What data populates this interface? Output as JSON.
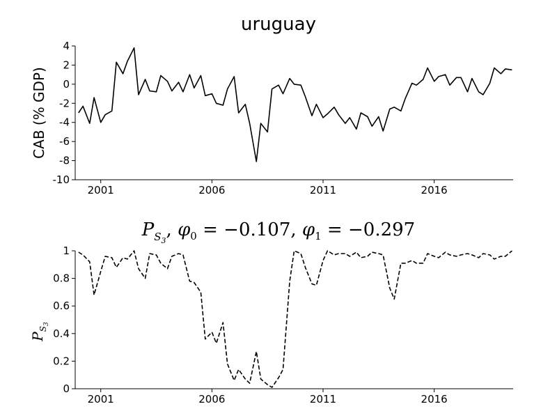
{
  "chart_data": [
    {
      "type": "line",
      "title": "uruguay",
      "xlabel": "",
      "ylabel": "CAB (% GDP)",
      "xlim": [
        1999.85,
        2019.55
      ],
      "ylim": [
        -10,
        4
      ],
      "yticks": [
        4,
        2,
        0,
        -2,
        -4,
        -6,
        -8,
        -10
      ],
      "ytick_labels": [
        "4",
        "2",
        "0",
        "-2",
        "-4",
        "-6",
        "-8",
        "-10"
      ],
      "xticks": [
        2001,
        2006,
        2011,
        2016
      ],
      "xtick_labels": [
        "2001",
        "2006",
        "2011",
        "2016"
      ],
      "line_color": "#000000",
      "line_style": "solid",
      "grid": false,
      "series": [
        {
          "x": [
            2000.0,
            2000.2,
            2000.5,
            2000.7,
            2001.0,
            2001.2,
            2001.5,
            2001.7,
            2002.0,
            2002.2,
            2002.5,
            2002.7,
            2003.0,
            2003.2,
            2003.5,
            2003.7,
            2004.0,
            2004.2,
            2004.5,
            2004.7,
            2005.0,
            2005.2,
            2005.5,
            2005.7,
            2006.0,
            2006.2,
            2006.5,
            2006.7,
            2007.0,
            2007.2,
            2007.5,
            2007.7,
            2008.0,
            2008.2,
            2008.5,
            2008.7,
            2009.0,
            2009.2,
            2009.5,
            2009.7,
            2010.0,
            2010.2,
            2010.5,
            2010.7,
            2011.0,
            2011.2,
            2011.5,
            2011.7,
            2012.0,
            2012.2,
            2012.5,
            2012.7,
            2013.0,
            2013.2,
            2013.5,
            2013.7,
            2014.0,
            2014.2,
            2014.5,
            2014.7,
            2015.0,
            2015.2,
            2015.5,
            2015.7,
            2016.0,
            2016.2,
            2016.5,
            2016.7,
            2017.0,
            2017.2,
            2017.5,
            2017.7,
            2018.0,
            2018.2,
            2018.5,
            2018.7,
            2019.0,
            2019.2,
            2019.5
          ],
          "values": [
            -3.0,
            -2.3,
            -4.1,
            -1.4,
            -4.0,
            -3.2,
            -2.8,
            2.3,
            1.1,
            2.4,
            3.8,
            -1.1,
            0.5,
            -0.7,
            -0.8,
            0.9,
            0.3,
            -0.7,
            0.2,
            -0.8,
            1.0,
            -0.4,
            0.9,
            -1.2,
            -1.0,
            -2.0,
            -2.2,
            -0.5,
            0.8,
            -3.0,
            -2.1,
            -4.1,
            -8.1,
            -4.1,
            -5.0,
            -0.5,
            -0.1,
            -1.0,
            0.6,
            0.0,
            -0.1,
            -1.3,
            -3.3,
            -2.1,
            -3.5,
            -3.1,
            -2.4,
            -3.2,
            -4.1,
            -3.5,
            -4.7,
            -3.0,
            -3.4,
            -4.4,
            -3.4,
            -4.9,
            -2.6,
            -2.4,
            -2.8,
            -1.5,
            0.1,
            -0.1,
            0.5,
            1.7,
            0.3,
            0.8,
            1.0,
            -0.1,
            0.7,
            0.7,
            -0.8,
            0.6,
            -0.8,
            -1.1,
            0.1,
            1.7,
            1.1,
            1.6,
            1.5
          ]
        }
      ]
    },
    {
      "type": "line",
      "title": "P_{S_3}, φ_0 = −0.107, φ_1 = −0.297",
      "title_parts": {
        "p": "P",
        "s": "S",
        "s3": "3",
        "sep1": ", ",
        "phi0": "φ",
        "phi0_sub": "0",
        "eq0": " = −0.107, ",
        "phi1": "φ",
        "phi1_sub": "1",
        "eq1": " = −0.297"
      },
      "xlabel": "",
      "ylabel": "P_{S_3}",
      "ylabel_parts": {
        "p": "P",
        "s": "S",
        "s3": "3"
      },
      "xlim": [
        1999.85,
        2019.55
      ],
      "ylim": [
        0,
        1
      ],
      "yticks": [
        0,
        0.2,
        0.4,
        0.6,
        0.8,
        1
      ],
      "ytick_labels": [
        "0",
        "0.2",
        "0.4",
        "0.6",
        "0.8",
        "1"
      ],
      "xticks": [
        2001,
        2006,
        2011,
        2016
      ],
      "xtick_labels": [
        "2001",
        "2006",
        "2011",
        "2016"
      ],
      "line_color": "#000000",
      "line_style": "dashed",
      "grid": false,
      "series": [
        {
          "x": [
            2000.0,
            2000.2,
            2000.5,
            2000.7,
            2001.0,
            2001.2,
            2001.5,
            2001.7,
            2002.0,
            2002.2,
            2002.5,
            2002.7,
            2003.0,
            2003.2,
            2003.5,
            2003.7,
            2004.0,
            2004.2,
            2004.5,
            2004.7,
            2005.0,
            2005.2,
            2005.5,
            2005.7,
            2006.0,
            2006.2,
            2006.5,
            2006.7,
            2007.0,
            2007.2,
            2007.5,
            2007.7,
            2008.0,
            2008.2,
            2008.5,
            2008.7,
            2009.0,
            2009.2,
            2009.5,
            2009.7,
            2010.0,
            2010.2,
            2010.5,
            2010.7,
            2011.0,
            2011.2,
            2011.5,
            2011.7,
            2012.0,
            2012.2,
            2012.5,
            2012.7,
            2013.0,
            2013.2,
            2013.5,
            2013.7,
            2014.0,
            2014.2,
            2014.5,
            2014.7,
            2015.0,
            2015.2,
            2015.5,
            2015.7,
            2016.0,
            2016.2,
            2016.5,
            2016.7,
            2017.0,
            2017.2,
            2017.5,
            2017.7,
            2018.0,
            2018.2,
            2018.5,
            2018.7,
            2019.0,
            2019.2,
            2019.5
          ],
          "values": [
            0.99,
            0.97,
            0.92,
            0.68,
            0.85,
            0.96,
            0.95,
            0.88,
            0.95,
            0.94,
            1.0,
            0.87,
            0.8,
            0.98,
            0.97,
            0.91,
            0.87,
            0.96,
            0.98,
            0.97,
            0.78,
            0.77,
            0.7,
            0.36,
            0.41,
            0.33,
            0.48,
            0.18,
            0.06,
            0.14,
            0.07,
            0.04,
            0.27,
            0.07,
            0.03,
            0.01,
            0.08,
            0.14,
            0.78,
            1.0,
            0.98,
            0.88,
            0.76,
            0.75,
            0.93,
            1.0,
            0.97,
            0.98,
            0.98,
            0.96,
            0.99,
            0.95,
            0.96,
            0.99,
            0.98,
            0.97,
            0.73,
            0.65,
            0.91,
            0.91,
            0.93,
            0.91,
            0.91,
            0.98,
            0.96,
            0.95,
            0.99,
            0.97,
            0.96,
            0.97,
            0.98,
            0.97,
            0.95,
            0.98,
            0.97,
            0.94,
            0.96,
            0.96,
            1.0
          ]
        }
      ]
    }
  ]
}
